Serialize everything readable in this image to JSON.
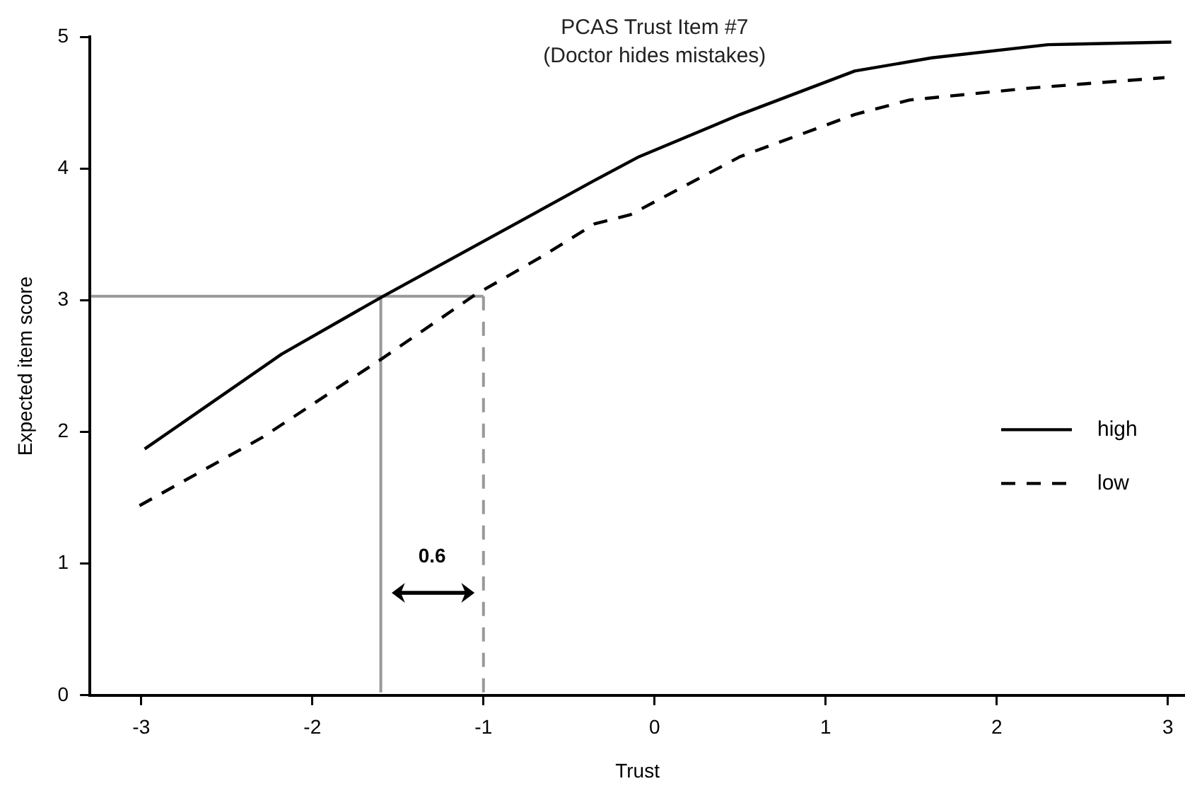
{
  "chart_data": {
    "type": "line",
    "title": "PCAS Trust Item #7",
    "subtitle": "(Doctor hides mistakes)",
    "xlabel": "Trust",
    "ylabel": "Expected item score",
    "xlim": [
      -3.3,
      3.1
    ],
    "xticks": [
      -3,
      -2,
      -1,
      0,
      1,
      2,
      3
    ],
    "ylim": [
      0,
      5
    ],
    "yticks": [
      0,
      1,
      2,
      3,
      4,
      5
    ],
    "grid": false,
    "legend": "right",
    "marker": "none",
    "series": [
      {
        "name": "high",
        "color": "#000000",
        "line_style": "solid",
        "x": [
          -2.98,
          -2.18,
          -1.6,
          -0.35,
          -0.09,
          0.5,
          1.17,
          1.62,
          2.3,
          3.02
        ],
        "values": [
          1.87,
          2.59,
          3.02,
          3.91,
          4.09,
          4.41,
          4.74,
          4.84,
          4.94,
          4.96
        ]
      },
      {
        "name": "low",
        "color": "#000000",
        "line_style": "dashed",
        "x": [
          -3.01,
          -2.29,
          -1.6,
          -1.05,
          -0.66,
          -0.35,
          -0.14,
          0.5,
          1.17,
          1.49,
          2.19,
          2.98
        ],
        "values": [
          1.44,
          1.96,
          2.55,
          3.04,
          3.33,
          3.58,
          3.65,
          4.09,
          4.41,
          4.52,
          4.61,
          4.69
        ]
      }
    ],
    "ref_lines": [
      {
        "axis": "y",
        "value": 3.03,
        "color": "#999999",
        "line_style": "solid"
      },
      {
        "axis": "x",
        "value": -1.6,
        "color": "#999999",
        "line_style": "solid"
      },
      {
        "axis": "x",
        "value": -1.0,
        "color": "#999999",
        "line_style": "dashed"
      }
    ],
    "annotations": [
      "0.6"
    ]
  }
}
